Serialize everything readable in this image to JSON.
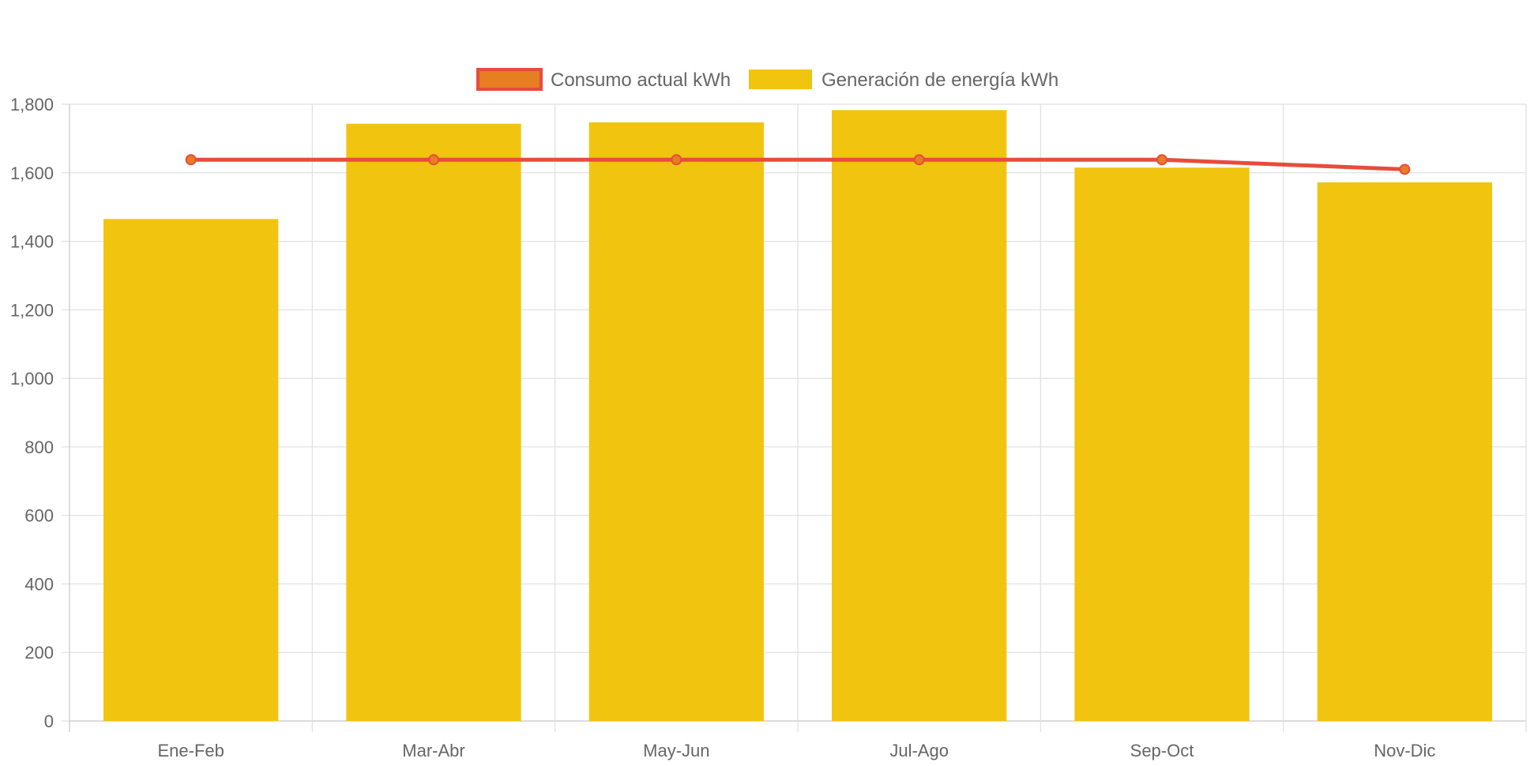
{
  "chart_data": {
    "type": "bar",
    "categories": [
      "Ene-Feb",
      "Mar-Abr",
      "May-Jun",
      "Jul-Ago",
      "Sep-Oct",
      "Nov-Dic"
    ],
    "series": [
      {
        "name": "Consumo actual kWh",
        "type": "line",
        "values": [
          1638,
          1638,
          1638,
          1638,
          1638,
          1610
        ],
        "color": "#e74c3c",
        "point_color": "#e67e22"
      },
      {
        "name": "Generación de energía kWh",
        "type": "bar",
        "values": [
          1465,
          1743,
          1747,
          1783,
          1615,
          1572
        ],
        "color": "#f1c40f"
      }
    ],
    "ylim": [
      0,
      1800
    ],
    "yticks": [
      "0",
      "200",
      "400",
      "600",
      "800",
      "1,000",
      "1,200",
      "1,400",
      "1,600",
      "1,800"
    ],
    "grid": true,
    "legend_position": "top-center",
    "title": "",
    "xlabel": "",
    "ylabel": ""
  }
}
